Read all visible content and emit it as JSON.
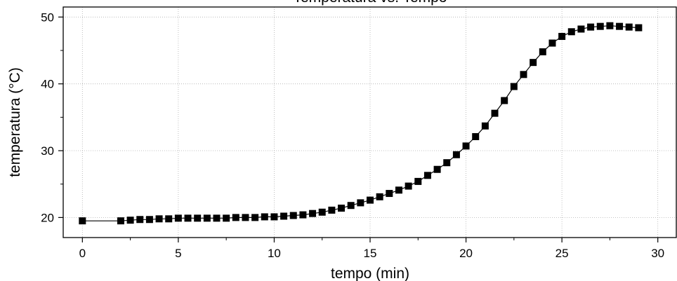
{
  "chart_data": {
    "type": "scatter",
    "title": "Temperatura vs. Tempo",
    "xlabel": "tempo (min)",
    "ylabel": "temperatura (°C)",
    "xlim": [
      -1,
      31
    ],
    "ylim": [
      17,
      51.5
    ],
    "xticks": [
      0,
      5,
      10,
      15,
      20,
      25,
      30
    ],
    "yticks": [
      20,
      30,
      40,
      50
    ],
    "grid": true,
    "marker": "square",
    "color": "#000000",
    "series": [
      {
        "x": [
          0,
          2,
          2.5,
          3,
          3.5,
          4,
          4.5,
          5,
          5.5,
          6,
          6.5,
          7,
          7.5,
          8,
          8.5,
          9,
          9.5,
          10,
          10.5,
          11,
          11.5,
          12,
          12.5,
          13,
          13.5,
          14,
          14.5,
          15,
          15.5,
          16,
          16.5,
          17,
          17.5,
          18,
          18.5,
          19,
          19.5,
          20,
          20.5,
          21,
          21.5,
          22,
          22.5,
          23,
          23.5,
          24,
          24.5,
          25,
          25.5,
          26,
          26.5,
          27,
          27.5,
          28,
          28.5,
          29
        ],
        "y": [
          19.5,
          19.5,
          19.6,
          19.7,
          19.7,
          19.8,
          19.8,
          19.9,
          19.9,
          19.9,
          19.9,
          19.9,
          19.9,
          20.0,
          20.0,
          20.0,
          20.1,
          20.1,
          20.2,
          20.3,
          20.4,
          20.6,
          20.8,
          21.1,
          21.4,
          21.8,
          22.2,
          22.6,
          23.1,
          23.6,
          24.1,
          24.7,
          25.4,
          26.3,
          27.2,
          28.2,
          29.4,
          30.7,
          32.1,
          33.7,
          35.6,
          37.5,
          39.6,
          41.4,
          43.2,
          44.8,
          46.1,
          47.1,
          47.8,
          48.2,
          48.5,
          48.6,
          48.7,
          48.6,
          48.5,
          48.4
        ]
      }
    ]
  }
}
